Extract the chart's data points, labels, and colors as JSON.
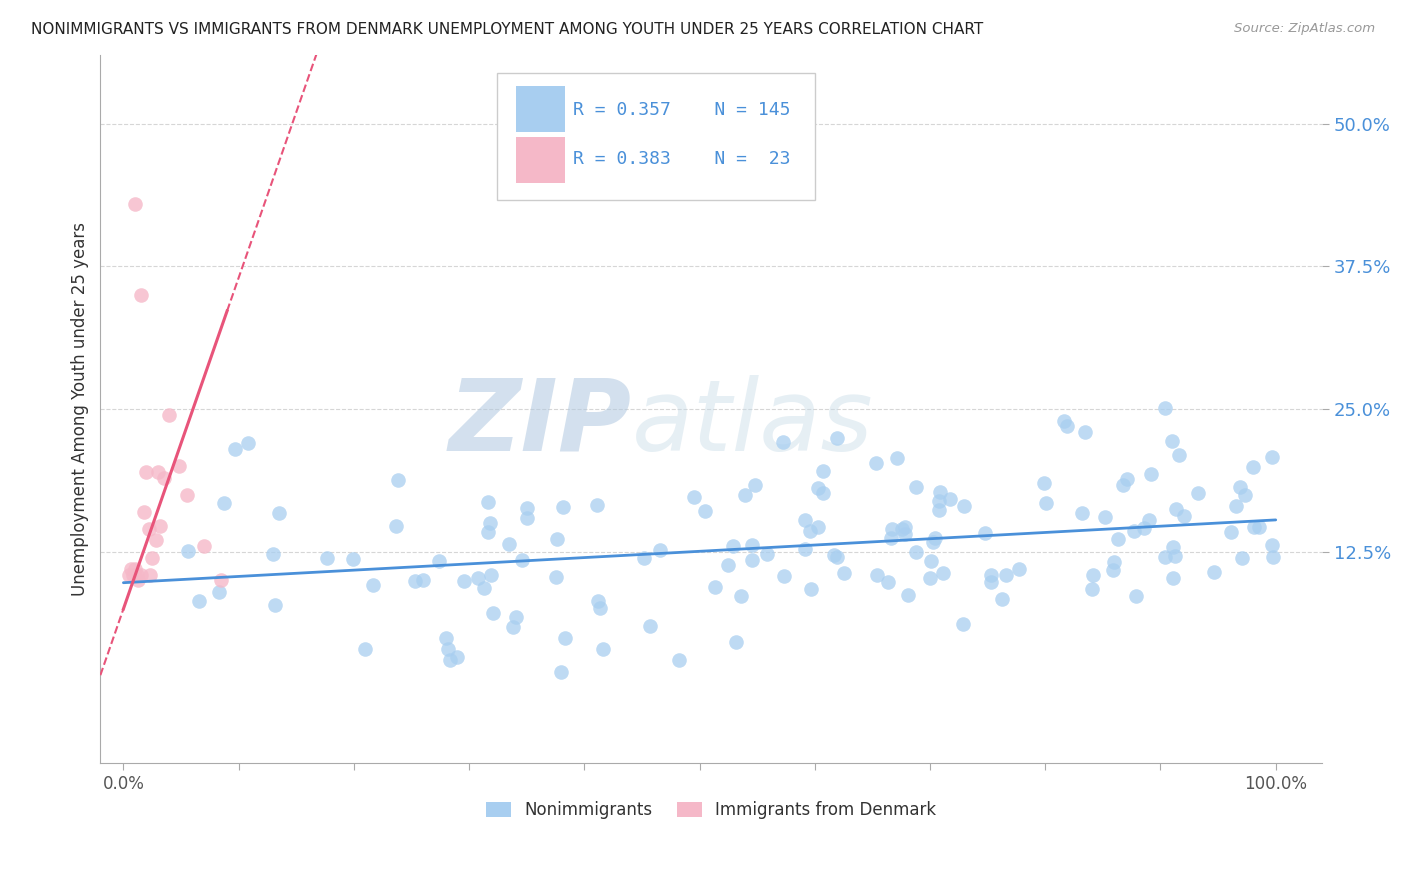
{
  "title": "NONIMMIGRANTS VS IMMIGRANTS FROM DENMARK UNEMPLOYMENT AMONG YOUTH UNDER 25 YEARS CORRELATION CHART",
  "source": "Source: ZipAtlas.com",
  "ylabel": "Unemployment Among Youth under 25 years",
  "ytick_labels": [
    "12.5%",
    "25.0%",
    "37.5%",
    "50.0%"
  ],
  "ytick_values": [
    0.125,
    0.25,
    0.375,
    0.5
  ],
  "ylim": [
    -0.06,
    0.56
  ],
  "xlim": [
    -0.02,
    1.04
  ],
  "R_nonimm": 0.357,
  "N_nonimm": 145,
  "R_imm": 0.383,
  "N_imm": 23,
  "color_nonimm": "#a8cef0",
  "color_imm": "#f5b8c8",
  "line_color_nonimm": "#4a90d9",
  "line_color_imm": "#e8547a",
  "legend_nonimm": "Nonimmigrants",
  "legend_imm": "Immigrants from Denmark",
  "background_color": "#ffffff",
  "grid_color": "#cccccc",
  "watermark_zip": "ZIP",
  "watermark_atlas": "atlas",
  "slope_nonimm": 0.055,
  "intercept_nonimm": 0.098,
  "slope_imm": 2.9,
  "intercept_imm": 0.075
}
